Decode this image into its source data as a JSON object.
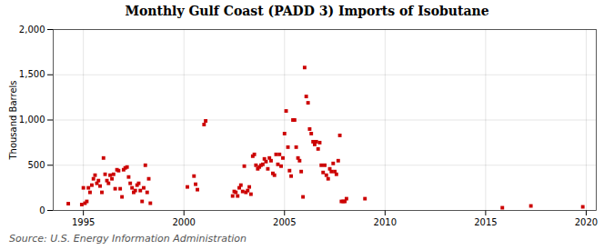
{
  "chart_data": {
    "type": "scatter",
    "title": "Monthly Gulf Coast (PADD 3) Imports of Isobutane",
    "ylabel": "Thousand Barrels",
    "source": "Source: U.S. Energy Information Administration",
    "color": "#cc0000",
    "marker": "square",
    "grid": true,
    "xlim": [
      1993.5,
      2020.5
    ],
    "ylim": [
      0,
      2000
    ],
    "xticks": [
      1995,
      2000,
      2005,
      2010,
      2015,
      2020
    ],
    "yticks": [
      0,
      500,
      {
        "value": 1000,
        "label": "1,000"
      },
      {
        "value": 1500,
        "label": "1,500"
      },
      {
        "value": 2000,
        "label": "2,000"
      }
    ],
    "x": [
      1994.25,
      1994.92,
      1995.0,
      1995.08,
      1995.17,
      1995.25,
      1995.33,
      1995.42,
      1995.5,
      1995.58,
      1995.67,
      1995.75,
      1995.83,
      1995.92,
      1996.0,
      1996.08,
      1996.17,
      1996.25,
      1996.33,
      1996.42,
      1996.5,
      1996.58,
      1996.67,
      1996.75,
      1996.83,
      1996.92,
      1997.0,
      1997.08,
      1997.17,
      1997.25,
      1997.33,
      1997.42,
      1997.5,
      1997.58,
      1997.67,
      1997.75,
      1997.83,
      1997.92,
      1998.0,
      1998.08,
      1998.17,
      1998.25,
      1998.33,
      2000.17,
      2000.5,
      2000.58,
      2000.67,
      2001.0,
      2001.08,
      2002.42,
      2002.5,
      2002.58,
      2002.67,
      2002.75,
      2002.83,
      2002.92,
      2003.0,
      2003.08,
      2003.17,
      2003.25,
      2003.33,
      2003.42,
      2003.5,
      2003.58,
      2003.67,
      2003.75,
      2003.83,
      2003.92,
      2004.0,
      2004.08,
      2004.17,
      2004.25,
      2004.33,
      2004.42,
      2004.5,
      2004.58,
      2004.67,
      2004.75,
      2004.83,
      2004.92,
      2005.0,
      2005.08,
      2005.17,
      2005.25,
      2005.33,
      2005.42,
      2005.5,
      2005.58,
      2005.67,
      2005.75,
      2005.83,
      2005.92,
      2006.0,
      2006.08,
      2006.17,
      2006.25,
      2006.33,
      2006.42,
      2006.5,
      2006.58,
      2006.67,
      2006.75,
      2006.83,
      2006.92,
      2007.0,
      2007.08,
      2007.17,
      2007.25,
      2007.33,
      2007.42,
      2007.5,
      2007.58,
      2007.67,
      2007.75,
      2007.83,
      2007.92,
      2008.0,
      2008.08,
      2009.0,
      2015.83,
      2017.25,
      2019.83
    ],
    "values": [
      75,
      65,
      250,
      80,
      100,
      250,
      200,
      280,
      350,
      390,
      300,
      330,
      270,
      200,
      580,
      400,
      330,
      300,
      390,
      350,
      400,
      240,
      450,
      440,
      240,
      150,
      450,
      470,
      480,
      370,
      300,
      250,
      200,
      220,
      280,
      300,
      220,
      100,
      250,
      500,
      200,
      350,
      80,
      260,
      380,
      290,
      230,
      950,
      990,
      160,
      210,
      200,
      160,
      250,
      280,
      210,
      490,
      200,
      220,
      260,
      180,
      600,
      620,
      500,
      460,
      480,
      500,
      510,
      570,
      540,
      460,
      580,
      550,
      410,
      390,
      620,
      510,
      620,
      490,
      580,
      850,
      1100,
      700,
      440,
      380,
      1000,
      1000,
      700,
      580,
      550,
      430,
      150,
      1580,
      1260,
      1190,
      900,
      850,
      760,
      730,
      760,
      680,
      750,
      500,
      420,
      500,
      390,
      350,
      460,
      430,
      520,
      430,
      400,
      550,
      830,
      100,
      100,
      100,
      130,
      130,
      30,
      50,
      40
    ]
  }
}
